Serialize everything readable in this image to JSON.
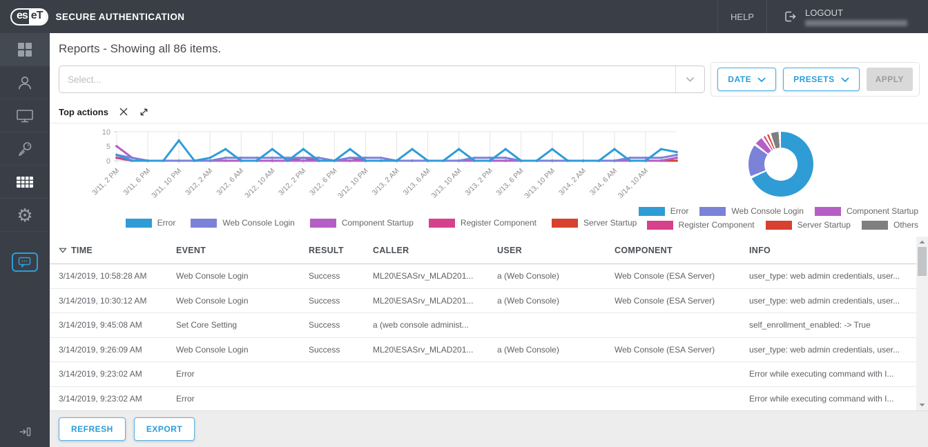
{
  "topbar": {
    "brand": "SECURE AUTHENTICATION",
    "help_label": "HELP",
    "logout_label": "LOGOUT"
  },
  "sidebar": {
    "active": "reports",
    "icons": [
      "dashboard-icon",
      "users-icon",
      "computers-icon",
      "key-icon",
      "reports-grid-icon",
      "settings-gear-icon",
      "feedback-chat-icon",
      "collapse-icon"
    ]
  },
  "page": {
    "title": "Reports - Showing all 86 items."
  },
  "filter": {
    "select_placeholder": "Select...",
    "date_label": "DATE",
    "presets_label": "PRESETS",
    "apply_label": "APPLY"
  },
  "widget": {
    "title": "Top actions"
  },
  "chart_data": [
    {
      "type": "line",
      "title": "Top actions",
      "ylim": [
        0,
        10
      ],
      "yticks": [
        0,
        5,
        10
      ],
      "x_tick_labels": [
        "3/11, 2 PM",
        "3/11, 6 PM",
        "3/11, 10 PM",
        "3/12, 2 AM",
        "3/12, 6 AM",
        "3/12, 10 AM",
        "3/12, 2 PM",
        "3/12, 6 PM",
        "3/12, 10 PM",
        "3/13, 2 AM",
        "3/13, 6 AM",
        "3/13, 10 AM",
        "3/13, 2 PM",
        "3/13, 6 PM",
        "3/13, 10 PM",
        "3/14, 2 AM",
        "3/14, 6 AM",
        "3/14, 10 AM"
      ],
      "points_per_tick": 2,
      "grid": true,
      "legend_position": "bottom",
      "series": [
        {
          "name": "Error",
          "color": "#2f9cd6",
          "values": [
            2,
            0,
            0,
            0,
            7,
            0,
            1,
            4,
            0,
            0,
            4,
            0,
            4,
            0,
            0,
            4,
            0,
            0,
            0,
            4,
            0,
            0,
            4,
            0,
            0,
            4,
            0,
            0,
            4,
            0,
            0,
            0,
            4,
            0,
            0,
            4,
            3
          ]
        },
        {
          "name": "Web Console Login",
          "color": "#7b82d8",
          "values": [
            2,
            1,
            0,
            0,
            0,
            0,
            0,
            1,
            1,
            1,
            1,
            1,
            1,
            1,
            0,
            1,
            1,
            1,
            0,
            0,
            0,
            0,
            0,
            1,
            1,
            1,
            0,
            0,
            0,
            0,
            0,
            0,
            0,
            1,
            1,
            1,
            2
          ]
        },
        {
          "name": "Component Startup",
          "color": "#b55ec5",
          "values": [
            5,
            1,
            0,
            0,
            0,
            0,
            0,
            0,
            0,
            0,
            0,
            0,
            0,
            0,
            0,
            0,
            0,
            0,
            0,
            0,
            0,
            0,
            0,
            0,
            0,
            0,
            0,
            0,
            0,
            0,
            0,
            0,
            0,
            0,
            0,
            0,
            1
          ]
        },
        {
          "name": "Register Component",
          "color": "#d6418c",
          "values": [
            1,
            0,
            0,
            0,
            0,
            0,
            0,
            0,
            0,
            0,
            0,
            0,
            1,
            0,
            0,
            1,
            0,
            0,
            0,
            0,
            0,
            0,
            0,
            0,
            0,
            0,
            0,
            0,
            0,
            0,
            0,
            0,
            0,
            0,
            0,
            0,
            1
          ]
        },
        {
          "name": "Server Startup",
          "color": "#d8402f",
          "values": [
            1,
            0,
            0,
            0,
            0,
            0,
            0,
            0,
            0,
            0,
            0,
            0,
            0,
            0,
            0,
            0,
            0,
            0,
            0,
            0,
            0,
            0,
            0,
            0,
            0,
            0,
            0,
            0,
            0,
            0,
            0,
            0,
            0,
            0,
            0,
            0,
            0
          ]
        }
      ]
    },
    {
      "type": "pie",
      "donut": true,
      "legend_position": "bottom-right",
      "labels": [
        "Error",
        "Web Console Login",
        "Component Startup",
        "Register Component",
        "Server Startup",
        "Others"
      ],
      "values_percent": [
        69,
        17,
        5,
        2,
        2,
        5
      ],
      "colors": [
        "#2f9cd6",
        "#7b82d8",
        "#b55ec5",
        "#d6418c",
        "#d8402f",
        "#7f7f7f"
      ]
    }
  ],
  "table": {
    "columns": [
      "TIME",
      "EVENT",
      "RESULT",
      "CALLER",
      "USER",
      "COMPONENT",
      "INFO"
    ],
    "rows": [
      [
        "3/14/2019, 10:58:28 AM",
        "Web Console Login",
        "Success",
        "ML20\\ESASrv_MLAD201...",
        "a (Web Console)",
        "Web Console (ESA Server)",
        "user_type: web admin credentials, user..."
      ],
      [
        "3/14/2019, 10:30:12 AM",
        "Web Console Login",
        "Success",
        "ML20\\ESASrv_MLAD201...",
        "a (Web Console)",
        "Web Console (ESA Server)",
        "user_type: web admin credentials, user..."
      ],
      [
        "3/14/2019, 9:45:08 AM",
        "Set Core Setting",
        "Success",
        "a (web console administ...",
        "",
        "",
        "self_enrollment_enabled: -> True"
      ],
      [
        "3/14/2019, 9:26:09 AM",
        "Web Console Login",
        "Success",
        "ML20\\ESASrv_MLAD201...",
        "a (Web Console)",
        "Web Console (ESA Server)",
        "user_type: web admin credentials, user..."
      ],
      [
        "3/14/2019, 9:23:02 AM",
        "Error",
        "",
        "",
        "",
        "",
        "Error while executing command with I..."
      ],
      [
        "3/14/2019, 9:23:02 AM",
        "Error",
        "",
        "",
        "",
        "",
        "Error while executing command with I..."
      ]
    ]
  },
  "footer": {
    "refresh_label": "REFRESH",
    "export_label": "EXPORT"
  },
  "colors": {
    "accent_blue": "#2a9cd8",
    "topbar_bg": "#3a3f47"
  }
}
